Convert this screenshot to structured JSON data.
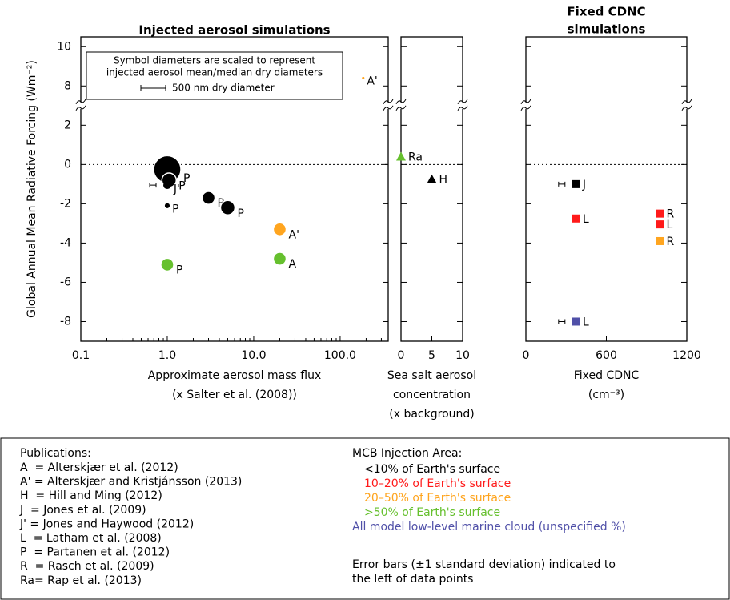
{
  "chart_data": [
    {
      "type": "scatter",
      "title": [
        "Injected aerosol simulations"
      ],
      "xlabel": [
        "Approximate aerosol mass flux",
        "(x Salter et al. (2008))"
      ],
      "ylabel": "Global Annual Mean Radiative Forcing (Wm⁻²)",
      "xscale": "log",
      "xlim": [
        0.1,
        360
      ],
      "xticks": [
        0.1,
        {
          "value": 1,
          "label": "1.0"
        },
        {
          "value": 10,
          "label": "10.0"
        },
        {
          "value": 100,
          "label": "100.0"
        }
      ],
      "ylim": [
        -9,
        10.5
      ],
      "y_break": [
        3,
        7
      ],
      "yticks": [
        -8,
        -6,
        -4,
        -2,
        0,
        2,
        8,
        10
      ],
      "zero_line": true,
      "marker": "circle",
      "x": [
        1.0,
        1.05,
        1.0,
        1.0,
        3.0,
        5.0,
        20,
        20,
        1.0,
        185
      ],
      "values": [
        -0.25,
        -0.8,
        -1.05,
        -2.1,
        -1.7,
        -2.2,
        -3.3,
        -4.8,
        -5.1,
        8.4
      ],
      "sizes": [
        550,
        290,
        160,
        100,
        260,
        290,
        260,
        260,
        260,
        50
      ],
      "colors": [
        "#000000",
        "#000000",
        "#000000",
        "#000000",
        "#000000",
        "#000000",
        "#ffa51f",
        "#66c02e",
        "#66c02e",
        "#ffa51f"
      ],
      "labels": [
        "P",
        "P",
        "J'",
        "P",
        "P",
        "P",
        "A'",
        "A",
        "P",
        "A'"
      ],
      "size_legend": {
        "lines": [
          "Symbol diameters are scaled to represent",
          "injected aerosol mean/median dry diameters"
        ],
        "value": 500,
        "label": "500 nm dry diameter"
      }
    },
    {
      "type": "scatter",
      "xlabel": [
        "Sea salt aerosol",
        "concentration",
        "(x background)"
      ],
      "xlim": [
        0,
        10
      ],
      "xticks": [
        0,
        5,
        10
      ],
      "marker": "triangle",
      "zero_line": true,
      "x": [
        0,
        5
      ],
      "values": [
        0.4,
        -0.75
      ],
      "colors": [
        "#66c02e",
        "#000000"
      ],
      "labels": [
        "Ra",
        "H"
      ]
    },
    {
      "type": "scatter",
      "title": [
        "Fixed CDNC",
        "simulations"
      ],
      "xlabel": [
        "Fixed CDNC",
        "(cm⁻³)"
      ],
      "xlim": [
        0,
        1200
      ],
      "xticks": [
        0,
        600,
        1200
      ],
      "marker": "square",
      "zero_line": true,
      "x": [
        375,
        375,
        375,
        1000,
        1000,
        1000
      ],
      "values": [
        -1.0,
        -2.75,
        -8.0,
        -2.5,
        -3.05,
        -3.9
      ],
      "colors": [
        "#000000",
        "#ff1a1a",
        "#5050a8",
        "#ff1a1a",
        "#ff1a1a",
        "#ffa51f"
      ],
      "labels": [
        "J",
        "L",
        "L",
        "R",
        "L",
        "R"
      ]
    }
  ],
  "legend_box": {
    "publications_title": "Publications:",
    "publications": [
      "A  = Alterskjær et al. (2012)",
      "A' = Alterskjær and Kristjánsson (2013)",
      "H  = Hill and Ming (2012)",
      "J  = Jones et al. (2009)",
      "J' = Jones and Haywood (2012)",
      "L  = Latham et al. (2008)",
      "P  = Partanen et al. (2012)",
      "R  = Rasch et al. (2009)",
      "Ra= Rap et al. (2013)"
    ],
    "area_title": "MCB Injection Area:",
    "areas": [
      {
        "label": "<10% of Earth's surface",
        "color": "#000000"
      },
      {
        "label": "10–20% of Earth's surface",
        "color": "#ff1a1a"
      },
      {
        "label": "20–50% of Earth's surface",
        "color": "#ffa51f"
      },
      {
        "label": ">50% of Earth's surface",
        "color": "#66c02e"
      },
      {
        "label": "All model low-level marine cloud (unspecified %)",
        "color": "#5050a8"
      }
    ],
    "note": [
      "Error bars (±1 standard deviation) indicated to",
      "the left of data points"
    ]
  }
}
